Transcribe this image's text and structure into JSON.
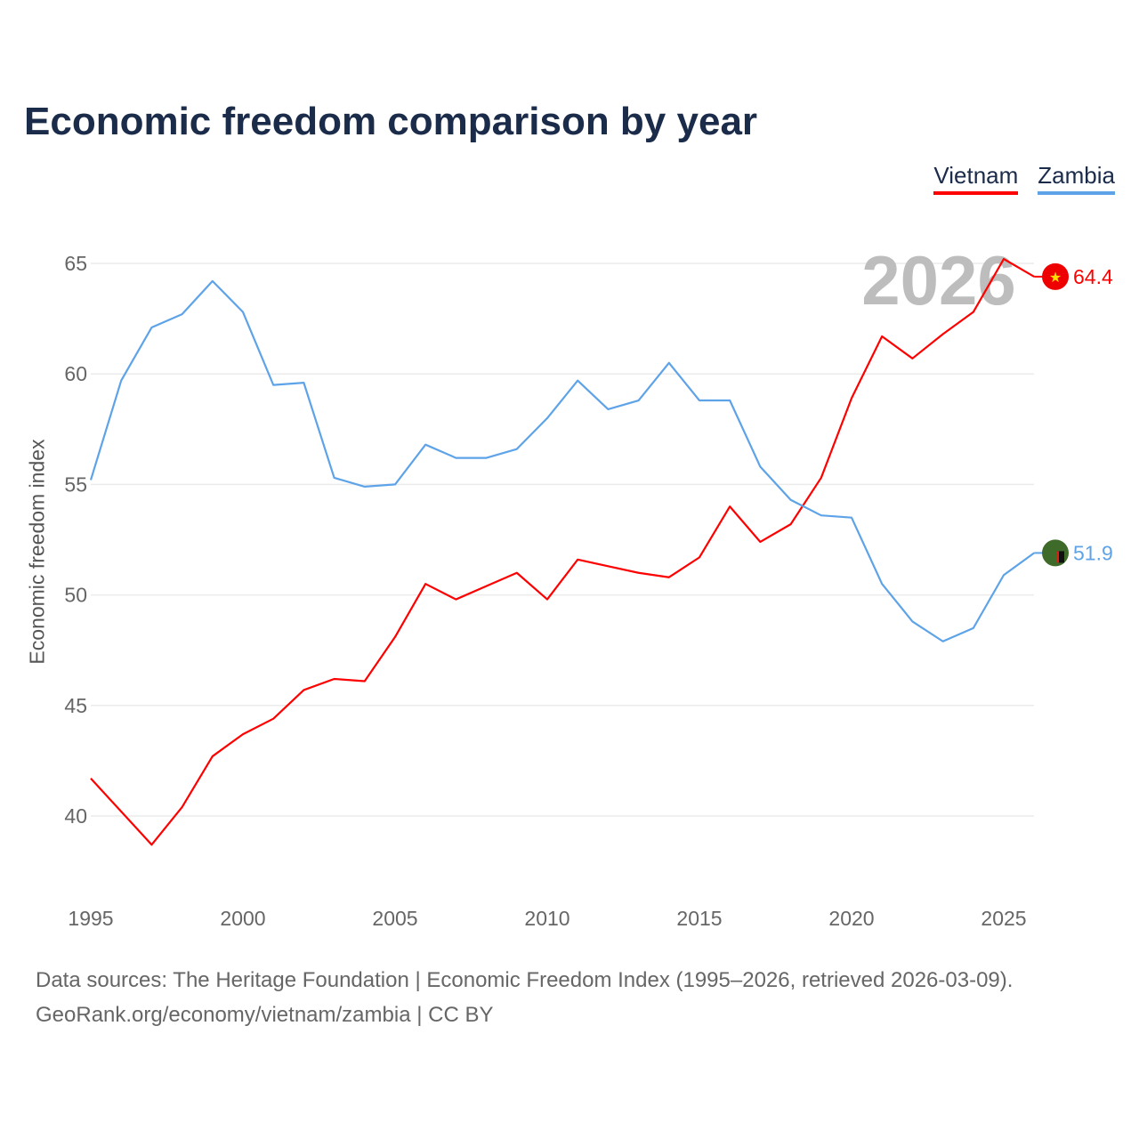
{
  "chart_data": {
    "type": "line",
    "title": "Economic freedom comparison by year",
    "xlabel": "",
    "ylabel": "Economic freedom index",
    "watermark_year": "2026",
    "x": [
      1995,
      1996,
      1997,
      1998,
      1999,
      2000,
      2001,
      2002,
      2003,
      2004,
      2005,
      2006,
      2007,
      2008,
      2009,
      2010,
      2011,
      2012,
      2013,
      2014,
      2015,
      2016,
      2017,
      2018,
      2019,
      2020,
      2021,
      2022,
      2023,
      2024,
      2025,
      2026
    ],
    "xticks": [
      1995,
      2000,
      2005,
      2010,
      2015,
      2020,
      2025
    ],
    "yticks": [
      40,
      45,
      50,
      55,
      60,
      65
    ],
    "xlim": [
      1995,
      2026
    ],
    "ylim": [
      36.3,
      67
    ],
    "grid": true,
    "legend_position": "top-right",
    "series": [
      {
        "name": "Vietnam",
        "color": "#ff0000",
        "end_label": "64.4",
        "values": [
          41.7,
          40.2,
          38.7,
          40.4,
          42.7,
          43.7,
          44.4,
          45.7,
          46.2,
          46.1,
          48.1,
          50.5,
          49.8,
          50.4,
          51.0,
          49.8,
          51.6,
          51.3,
          51.0,
          50.8,
          51.7,
          54.0,
          52.4,
          53.2,
          55.3,
          58.9,
          61.7,
          60.7,
          61.8,
          62.8,
          65.2,
          64.4
        ]
      },
      {
        "name": "Zambia",
        "color": "#5ea3e8",
        "end_label": "51.9",
        "values": [
          55.2,
          59.7,
          62.1,
          62.7,
          64.2,
          62.8,
          59.5,
          59.6,
          55.3,
          54.9,
          55.0,
          56.8,
          56.2,
          56.2,
          56.6,
          58.0,
          59.7,
          58.4,
          58.8,
          60.5,
          58.8,
          58.8,
          55.8,
          54.3,
          53.6,
          53.5,
          50.5,
          48.8,
          47.9,
          48.5,
          50.9,
          51.9
        ]
      }
    ]
  },
  "footer": {
    "line1": "Data sources: The Heritage Foundation | Economic Freedom Index (1995–2026, retrieved 2026-03-09).",
    "line2": "GeoRank.org/economy/vietnam/zambia | CC BY"
  }
}
